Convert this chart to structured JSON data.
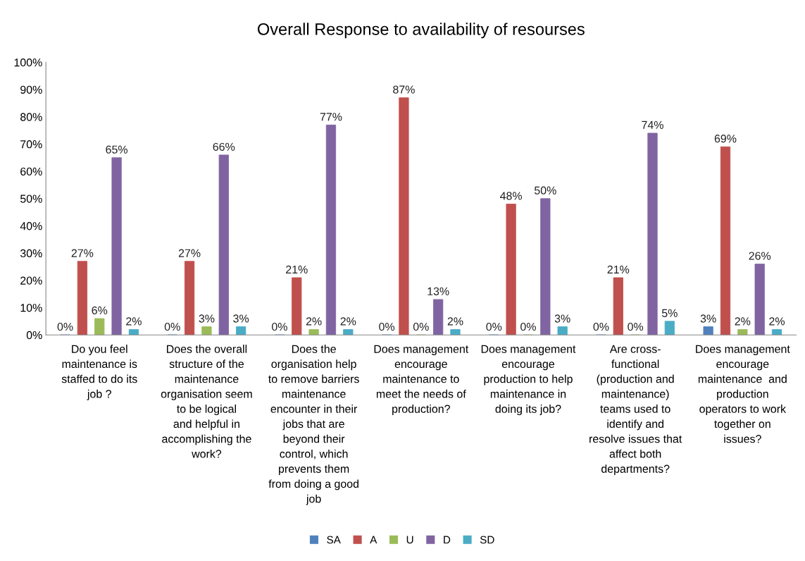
{
  "chart_data": {
    "type": "bar",
    "title": "Overall Response to availability of resourses",
    "categories": [
      "Do you feel\nmaintenance is\nstaffed to do its\njob ?",
      "Does the overall\nstructure of the\nmaintenance\norganisation seem\nto be logical\nand helpful in\naccomplishing the\nwork?",
      "Does the\norganisation help\nto remove barriers\nmaintenance\nencounter in their\njobs that are\nbeyond their\ncontrol, which\nprevents them\nfrom doing a good\njob",
      "Does management\nencourage\nmaintenance to\nmeet the needs of\nproduction?",
      "Does management\nencourage\nproduction to help\nmaintenance in\ndoing its job?",
      "Are cross-\nfunctional\n(production and\nmaintenance)\nteams used to\nidentify and\nresolve issues that\naffect both\ndepartments?",
      "Does management\nencourage\nmaintenance  and\nproduction\noperators to work\ntogether on\nissues?"
    ],
    "series": [
      {
        "name": "SA",
        "color": "#4f81bd",
        "values": [
          0,
          0,
          0,
          0,
          0,
          0,
          3
        ],
        "value_labels": [
          "0%",
          "0%",
          "0%",
          "0%",
          "0%",
          "0%",
          "3%"
        ]
      },
      {
        "name": "A",
        "color": "#c0504d",
        "values": [
          27,
          27,
          21,
          87,
          48,
          21,
          69
        ],
        "value_labels": [
          "27%",
          "27%",
          "21%",
          "87%",
          "48%",
          "21%",
          "69%"
        ]
      },
      {
        "name": "U",
        "color": "#9bbb59",
        "values": [
          6,
          3,
          2,
          0,
          0,
          0,
          2
        ],
        "value_labels": [
          "6%",
          "3%",
          "2%",
          "0%",
          "0%",
          "0%",
          "2%"
        ]
      },
      {
        "name": "D",
        "color": "#8064a2",
        "values": [
          65,
          66,
          77,
          13,
          50,
          74,
          26
        ],
        "value_labels": [
          "65%",
          "66%",
          "77%",
          "13%",
          "50%",
          "74%",
          "26%"
        ]
      },
      {
        "name": "SD",
        "color": "#4bacc6",
        "values": [
          2,
          3,
          2,
          2,
          3,
          5,
          2
        ],
        "value_labels": [
          "2%",
          "3%",
          "2%",
          "2%",
          "3%",
          "5%",
          "2%"
        ]
      }
    ],
    "ylim": [
      0,
      100
    ],
    "yticks": [
      {
        "value": 0,
        "label": "0%"
      },
      {
        "value": 10,
        "label": "10%"
      },
      {
        "value": 20,
        "label": "20%"
      },
      {
        "value": 30,
        "label": "30%"
      },
      {
        "value": 40,
        "label": "40%"
      },
      {
        "value": 50,
        "label": "50%"
      },
      {
        "value": 60,
        "label": "60%"
      },
      {
        "value": 70,
        "label": "70%"
      },
      {
        "value": 80,
        "label": "80%"
      },
      {
        "value": 90,
        "label": "90%"
      },
      {
        "value": 100,
        "label": "100%"
      }
    ],
    "grid": false,
    "legend": "bottom"
  }
}
